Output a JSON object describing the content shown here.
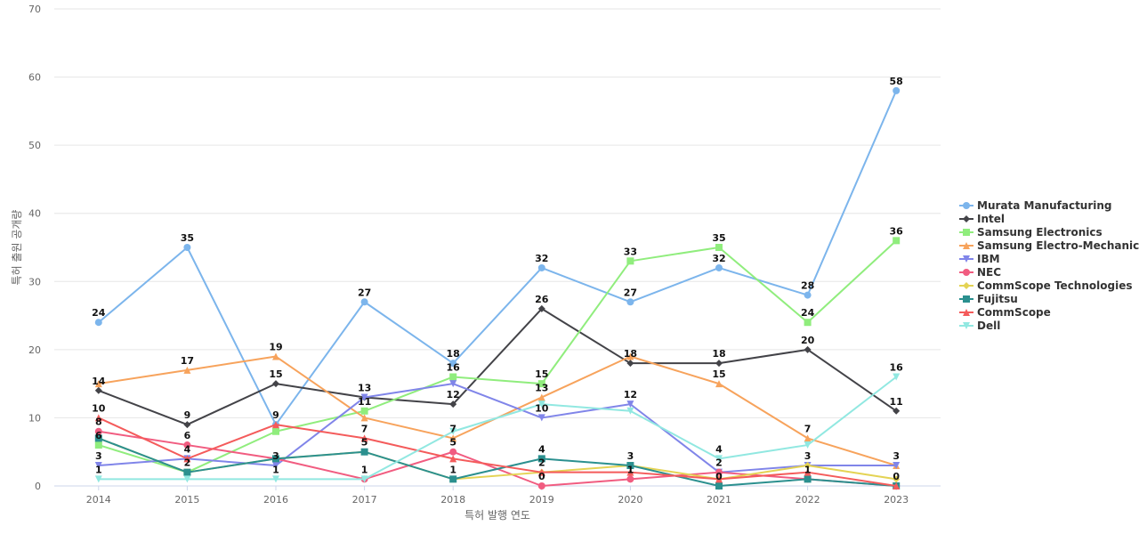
{
  "chart_data": {
    "type": "line",
    "title": "",
    "xlabel": "특허 발행 연도",
    "ylabel": "특허 출원 공개량",
    "ylim": [
      0,
      70
    ],
    "yticks": [
      0,
      10,
      20,
      30,
      40,
      50,
      60,
      70
    ],
    "legend_position": "right",
    "grid": true,
    "categories": [
      "2014",
      "2015",
      "2016",
      "2017",
      "2018",
      "2019",
      "2020",
      "2021",
      "2022",
      "2023"
    ],
    "series": [
      {
        "name": "Murata Manufacturing",
        "color": "#7cb5ec",
        "marker": "circle",
        "values": [
          24,
          35,
          9,
          27,
          18,
          32,
          27,
          32,
          28,
          58
        ]
      },
      {
        "name": "Intel",
        "color": "#434348",
        "marker": "diamond",
        "values": [
          14,
          9,
          15,
          13,
          12,
          26,
          18,
          18,
          20,
          11
        ]
      },
      {
        "name": "Samsung Electronics",
        "color": "#90ed7d",
        "marker": "square",
        "values": [
          6,
          2,
          8,
          11,
          16,
          15,
          33,
          35,
          24,
          36
        ]
      },
      {
        "name": "Samsung Electro-Mechanics",
        "color": "#f7a35c",
        "marker": "triangle",
        "values": [
          15,
          17,
          19,
          10,
          7,
          13,
          19,
          15,
          7,
          3
        ]
      },
      {
        "name": "IBM",
        "color": "#8085e9",
        "marker": "triangle-down",
        "values": [
          3,
          4,
          3,
          13,
          15,
          10,
          12,
          2,
          3,
          3
        ]
      },
      {
        "name": "NEC",
        "color": "#f15c80",
        "marker": "circle",
        "values": [
          8,
          6,
          4,
          1,
          5,
          0,
          1,
          2,
          1,
          0
        ]
      },
      {
        "name": "CommScope Technologies",
        "color": "#e4d354",
        "marker": "diamond",
        "values": [
          7,
          2,
          4,
          5,
          1,
          2,
          3,
          1,
          3,
          1
        ]
      },
      {
        "name": "Fujitsu",
        "color": "#2b908f",
        "marker": "square",
        "values": [
          7,
          2,
          4,
          5,
          1,
          4,
          3,
          0,
          1,
          0
        ]
      },
      {
        "name": "CommScope",
        "color": "#f45b5b",
        "marker": "triangle",
        "values": [
          10,
          4,
          9,
          7,
          4,
          2,
          2,
          1,
          2,
          0
        ]
      },
      {
        "name": "Dell",
        "color": "#91e8e1",
        "marker": "triangle-down",
        "values": [
          1,
          1,
          1,
          1,
          8,
          12,
          11,
          4,
          6,
          16
        ]
      }
    ],
    "data_labels": [
      {
        "category": "2014",
        "value": 24,
        "text": "24"
      },
      {
        "category": "2014",
        "value": 14,
        "text": "14"
      },
      {
        "category": "2014",
        "value": 10,
        "text": "10"
      },
      {
        "category": "2014",
        "value": 8,
        "text": "8"
      },
      {
        "category": "2014",
        "value": 6,
        "text": "6"
      },
      {
        "category": "2014",
        "value": 3,
        "text": "3"
      },
      {
        "category": "2014",
        "value": 1,
        "text": "1"
      },
      {
        "category": "2015",
        "value": 35,
        "text": "35"
      },
      {
        "category": "2015",
        "value": 17,
        "text": "17"
      },
      {
        "category": "2015",
        "value": 9,
        "text": "9"
      },
      {
        "category": "2015",
        "value": 6,
        "text": "6"
      },
      {
        "category": "2015",
        "value": 4,
        "text": "4"
      },
      {
        "category": "2015",
        "value": 2,
        "text": "2"
      },
      {
        "category": "2016",
        "value": 19,
        "text": "19"
      },
      {
        "category": "2016",
        "value": 15,
        "text": "15"
      },
      {
        "category": "2016",
        "value": 9,
        "text": "9"
      },
      {
        "category": "2016",
        "value": 3,
        "text": "3"
      },
      {
        "category": "2016",
        "value": 1,
        "text": "1"
      },
      {
        "category": "2017",
        "value": 27,
        "text": "27"
      },
      {
        "category": "2017",
        "value": 13,
        "text": "13"
      },
      {
        "category": "2017",
        "value": 11,
        "text": "11"
      },
      {
        "category": "2017",
        "value": 7,
        "text": "7"
      },
      {
        "category": "2017",
        "value": 5,
        "text": "5"
      },
      {
        "category": "2017",
        "value": 1,
        "text": "1"
      },
      {
        "category": "2018",
        "value": 18,
        "text": "18"
      },
      {
        "category": "2018",
        "value": 16,
        "text": "16"
      },
      {
        "category": "2018",
        "value": 12,
        "text": "12"
      },
      {
        "category": "2018",
        "value": 7,
        "text": "7"
      },
      {
        "category": "2018",
        "value": 5,
        "text": "5"
      },
      {
        "category": "2018",
        "value": 1,
        "text": "1"
      },
      {
        "category": "2019",
        "value": 32,
        "text": "32"
      },
      {
        "category": "2019",
        "value": 26,
        "text": "26"
      },
      {
        "category": "2019",
        "value": 15,
        "text": "15"
      },
      {
        "category": "2019",
        "value": 13,
        "text": "13"
      },
      {
        "category": "2019",
        "value": 10,
        "text": "10"
      },
      {
        "category": "2019",
        "value": 4,
        "text": "4"
      },
      {
        "category": "2019",
        "value": 2,
        "text": "2"
      },
      {
        "category": "2019",
        "value": 0,
        "text": "0"
      },
      {
        "category": "2020",
        "value": 33,
        "text": "33"
      },
      {
        "category": "2020",
        "value": 27,
        "text": "27"
      },
      {
        "category": "2020",
        "value": 18,
        "text": "18"
      },
      {
        "category": "2020",
        "value": 12,
        "text": "12"
      },
      {
        "category": "2020",
        "value": 3,
        "text": "3"
      },
      {
        "category": "2020",
        "value": 1,
        "text": "1"
      },
      {
        "category": "2021",
        "value": 35,
        "text": "35"
      },
      {
        "category": "2021",
        "value": 32,
        "text": "32"
      },
      {
        "category": "2021",
        "value": 18,
        "text": "18"
      },
      {
        "category": "2021",
        "value": 15,
        "text": "15"
      },
      {
        "category": "2021",
        "value": 4,
        "text": "4"
      },
      {
        "category": "2021",
        "value": 2,
        "text": "2"
      },
      {
        "category": "2021",
        "value": 0,
        "text": "0"
      },
      {
        "category": "2022",
        "value": 28,
        "text": "28"
      },
      {
        "category": "2022",
        "value": 24,
        "text": "24"
      },
      {
        "category": "2022",
        "value": 20,
        "text": "20"
      },
      {
        "category": "2022",
        "value": 7,
        "text": "7"
      },
      {
        "category": "2022",
        "value": 3,
        "text": "3"
      },
      {
        "category": "2022",
        "value": 1,
        "text": "1"
      },
      {
        "category": "2023",
        "value": 58,
        "text": "58"
      },
      {
        "category": "2023",
        "value": 36,
        "text": "36"
      },
      {
        "category": "2023",
        "value": 16,
        "text": "16"
      },
      {
        "category": "2023",
        "value": 11,
        "text": "11"
      },
      {
        "category": "2023",
        "value": 3,
        "text": "3"
      },
      {
        "category": "2023",
        "value": 0,
        "text": "0"
      }
    ]
  }
}
